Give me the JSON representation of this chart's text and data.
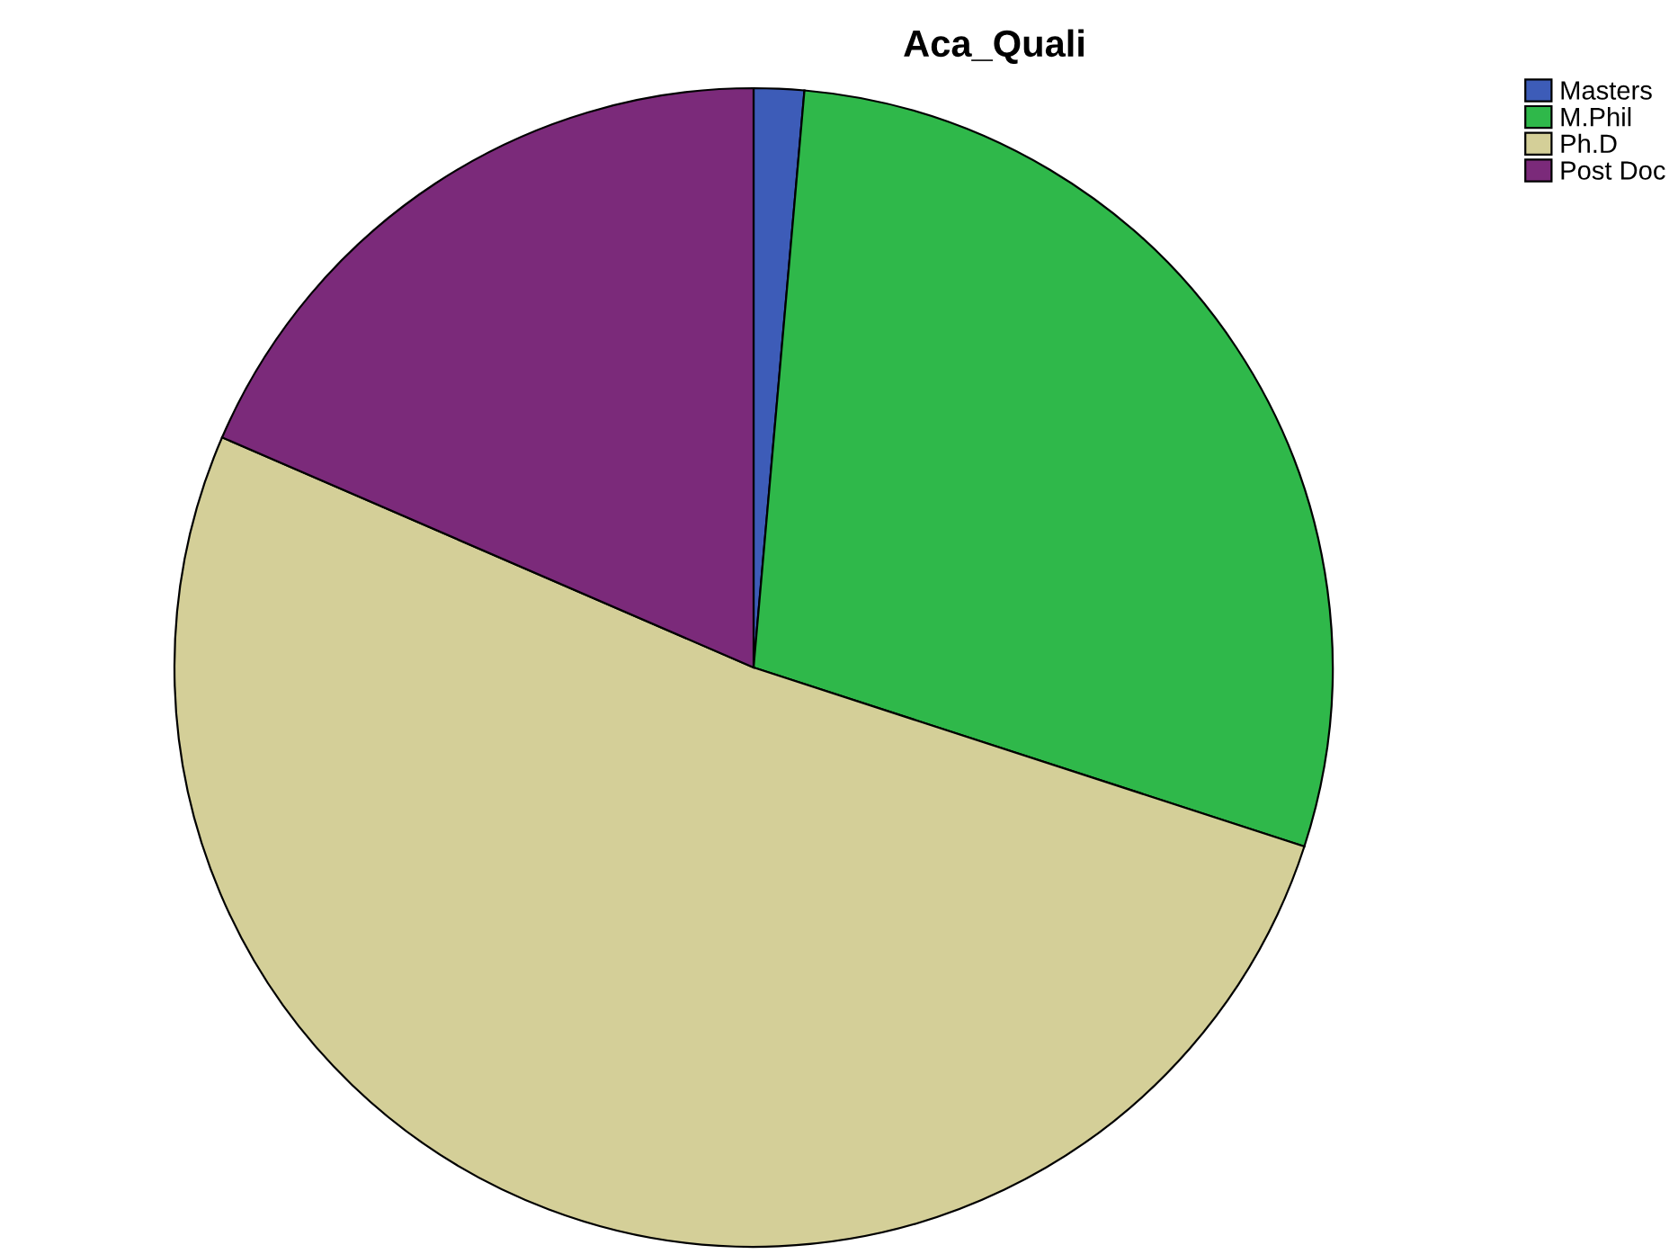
{
  "chart_data": {
    "type": "pie",
    "title": "Aca_Quali",
    "categories": [
      "Masters",
      "M.Phil",
      "Ph.D",
      "Post Doc"
    ],
    "values": [
      1.4,
      28.6,
      51.5,
      18.5
    ],
    "colors": [
      "#3d5cb8",
      "#2fb84a",
      "#d4cf98",
      "#7b2a7a"
    ],
    "legend": "top right"
  }
}
